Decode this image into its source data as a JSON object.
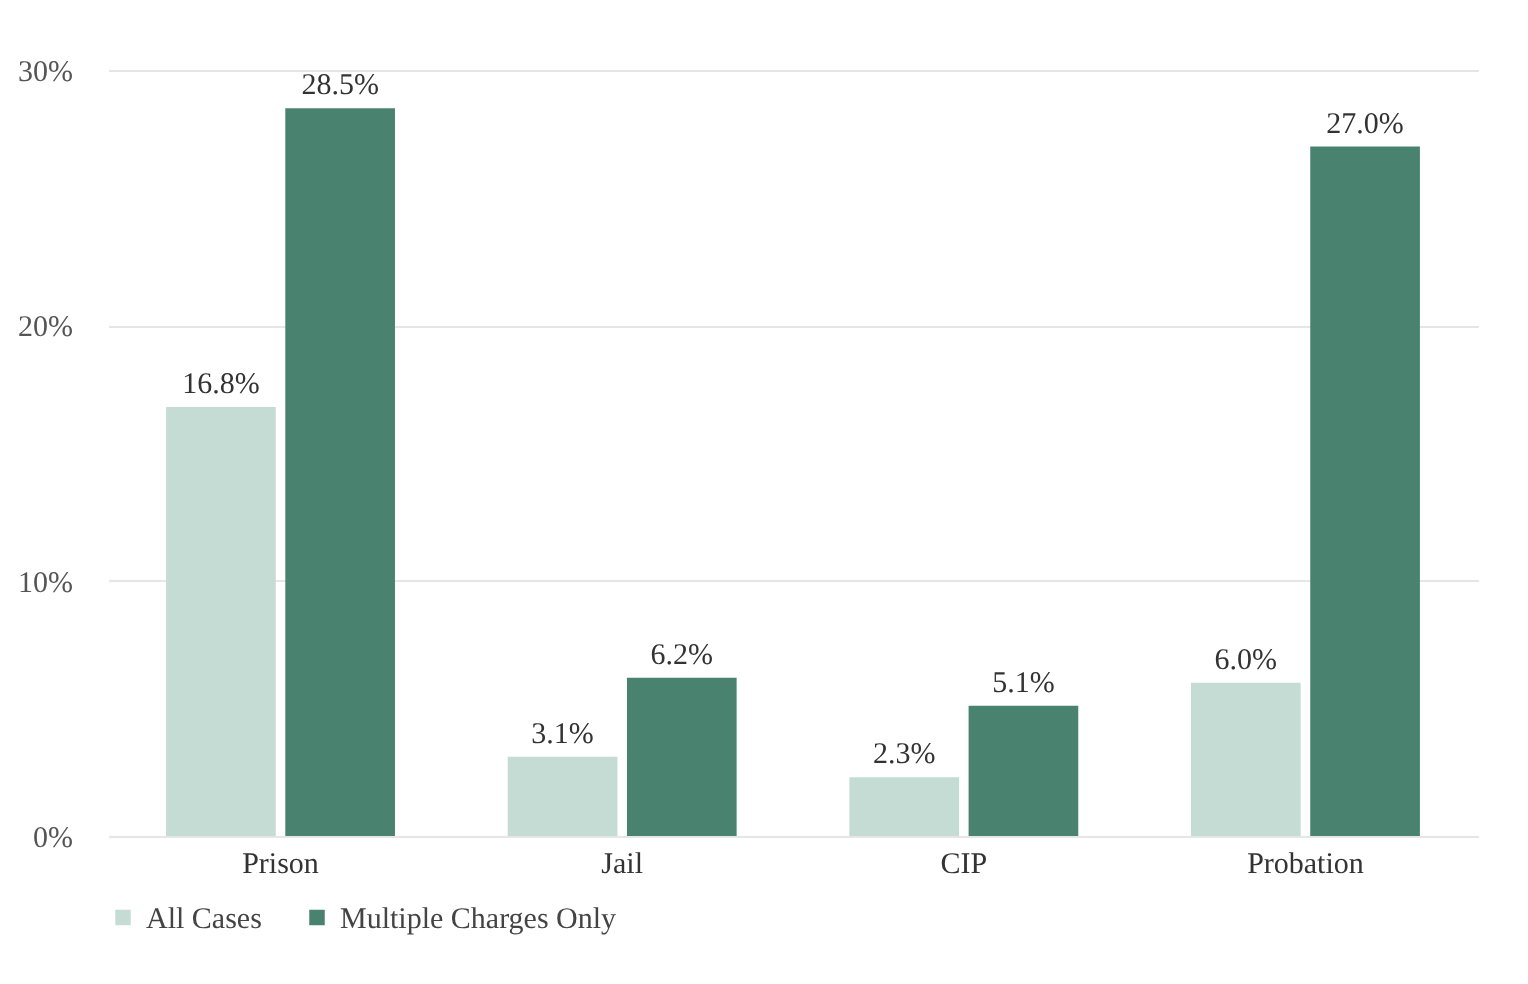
{
  "chart_data": {
    "type": "bar",
    "categories": [
      "Prison",
      "Jail",
      "CIP",
      "Probation"
    ],
    "series": [
      {
        "name": "All Cases",
        "color": "#c5dcd4",
        "values": [
          16.8,
          3.1,
          2.3,
          6.0
        ],
        "value_labels": [
          "16.8%",
          "3.1%",
          "2.3%",
          "6.0%"
        ]
      },
      {
        "name": "Multiple Charges Only",
        "color": "#4a8270",
        "values": [
          28.5,
          6.2,
          5.1,
          27.0
        ],
        "value_labels": [
          "28.5%",
          "6.2%",
          "5.1%",
          "27.0%"
        ]
      }
    ],
    "ylim": [
      0,
      30
    ],
    "yticks": [
      {
        "value": 0,
        "label": "0%"
      },
      {
        "value": 10,
        "label": "10%"
      },
      {
        "value": 20,
        "label": "20%"
      },
      {
        "value": 30,
        "label": "30%"
      }
    ],
    "grid": "y",
    "legend": "bottom"
  }
}
